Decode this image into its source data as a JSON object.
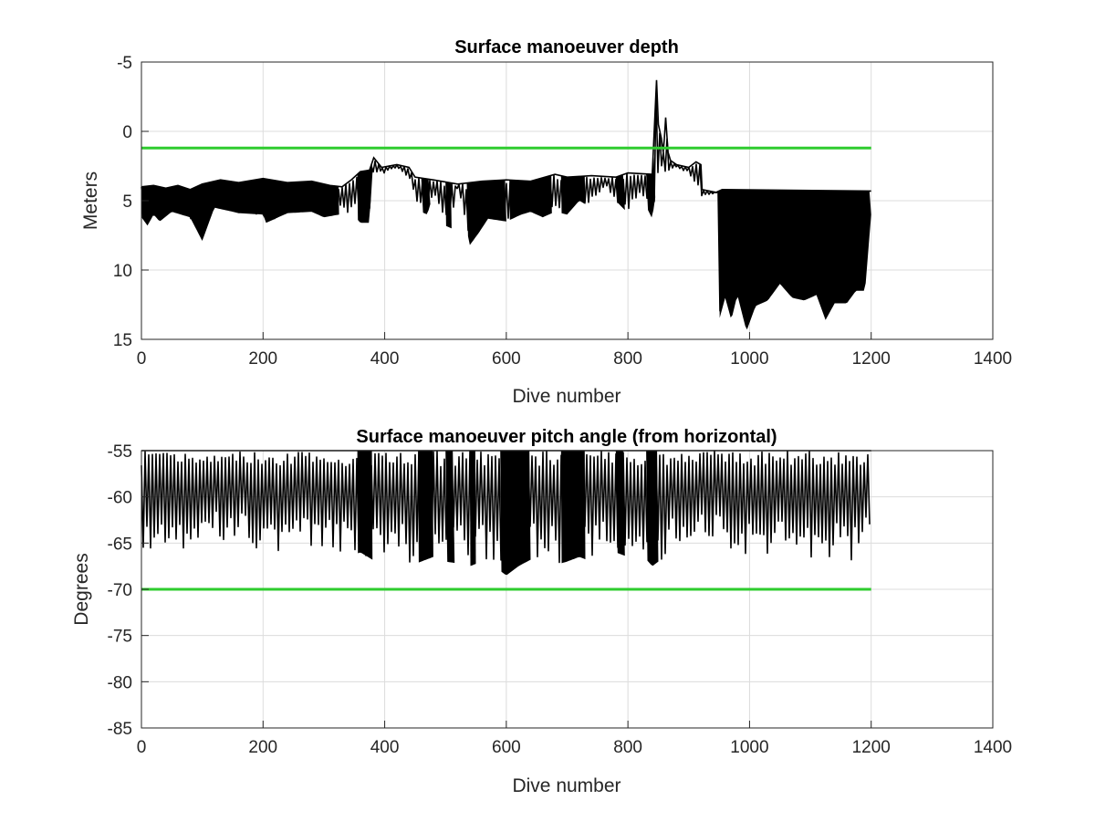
{
  "chart_data": [
    {
      "type": "line",
      "title": "Surface manoeuver depth",
      "xlabel": "Dive number",
      "ylabel": "Meters",
      "xlim": [
        0,
        1400
      ],
      "ylim": [
        -5,
        15
      ],
      "y_reversed": true,
      "grid": true,
      "xticks": [
        "0",
        "200",
        "400",
        "600",
        "800",
        "1000",
        "1200",
        "1400"
      ],
      "yticks": [
        "-5",
        "0",
        "5",
        "10",
        "15"
      ],
      "series": [
        {
          "style": "black spiky line",
          "color": "#000000",
          "upper": [
            [
              0,
              4.0
            ],
            [
              20,
              3.9
            ],
            [
              40,
              4.1
            ],
            [
              60,
              3.9
            ],
            [
              80,
              4.2
            ],
            [
              100,
              3.8
            ],
            [
              130,
              3.5
            ],
            [
              160,
              3.7
            ],
            [
              200,
              3.4
            ],
            [
              240,
              3.7
            ],
            [
              280,
              3.6
            ],
            [
              310,
              3.9
            ],
            [
              330,
              4.0
            ],
            [
              345,
              3.5
            ],
            [
              360,
              2.9
            ],
            [
              375,
              2.8
            ],
            [
              382,
              1.9
            ],
            [
              395,
              2.6
            ],
            [
              420,
              2.4
            ],
            [
              440,
              2.6
            ],
            [
              450,
              3.3
            ],
            [
              480,
              3.5
            ],
            [
              520,
              3.8
            ],
            [
              560,
              3.6
            ],
            [
              600,
              3.5
            ],
            [
              640,
              3.6
            ],
            [
              680,
              3.1
            ],
            [
              700,
              3.3
            ],
            [
              740,
              3.2
            ],
            [
              780,
              3.3
            ],
            [
              800,
              3.0
            ],
            [
              840,
              3.1
            ],
            [
              847,
              -3.7
            ],
            [
              850,
              -0.5
            ],
            [
              855,
              0.5
            ],
            [
              858,
              1.5
            ],
            [
              860,
              0.5
            ],
            [
              862,
              -1.0
            ],
            [
              866,
              1.5
            ],
            [
              870,
              2.1
            ],
            [
              880,
              2.4
            ],
            [
              900,
              2.6
            ],
            [
              912,
              2.2
            ],
            [
              920,
              2.4
            ],
            [
              922,
              4.2
            ],
            [
              945,
              4.4
            ],
            [
              955,
              4.2
            ],
            [
              1200,
              4.3
            ]
          ],
          "lower": [
            [
              0,
              6.2
            ],
            [
              10,
              6.8
            ],
            [
              20,
              6.0
            ],
            [
              30,
              6.5
            ],
            [
              50,
              5.8
            ],
            [
              80,
              6.2
            ],
            [
              100,
              7.9
            ],
            [
              120,
              5.5
            ],
            [
              160,
              5.9
            ],
            [
              200,
              6.0
            ],
            [
              205,
              6.6
            ],
            [
              240,
              5.9
            ],
            [
              280,
              5.8
            ],
            [
              300,
              6.2
            ],
            [
              325,
              6.0
            ],
            [
              345,
              5.8
            ],
            [
              360,
              6.6
            ],
            [
              375,
              6.6
            ],
            [
              380,
              3.0
            ],
            [
              400,
              3.0
            ],
            [
              420,
              2.6
            ],
            [
              440,
              3.6
            ],
            [
              460,
              5.8
            ],
            [
              470,
              6.0
            ],
            [
              480,
              4.5
            ],
            [
              500,
              6.8
            ],
            [
              510,
              7.0
            ],
            [
              520,
              4.0
            ],
            [
              540,
              8.2
            ],
            [
              555,
              7.3
            ],
            [
              570,
              6.3
            ],
            [
              600,
              6.5
            ],
            [
              625,
              6.0
            ],
            [
              640,
              5.8
            ],
            [
              660,
              6.2
            ],
            [
              680,
              5.8
            ],
            [
              700,
              6.0
            ],
            [
              720,
              5.0
            ],
            [
              740,
              5.5
            ],
            [
              760,
              4.0
            ],
            [
              780,
              5.0
            ],
            [
              800,
              5.9
            ],
            [
              820,
              4.5
            ],
            [
              840,
              6.3
            ],
            [
              850,
              3.2
            ],
            [
              860,
              3.4
            ],
            [
              870,
              2.8
            ],
            [
              880,
              2.6
            ],
            [
              900,
              3.0
            ],
            [
              920,
              4.8
            ],
            [
              948,
              4.4
            ],
            [
              950,
              13.6
            ],
            [
              960,
              12.0
            ],
            [
              970,
              13.6
            ],
            [
              980,
              11.8
            ],
            [
              995,
              14.4
            ],
            [
              1010,
              12.6
            ],
            [
              1030,
              12.2
            ],
            [
              1050,
              11.0
            ],
            [
              1070,
              12.0
            ],
            [
              1090,
              12.2
            ],
            [
              1110,
              11.8
            ],
            [
              1125,
              13.6
            ],
            [
              1140,
              12.4
            ],
            [
              1160,
              12.4
            ],
            [
              1175,
              11.5
            ],
            [
              1190,
              11.5
            ],
            [
              1200,
              6.0
            ]
          ],
          "fill_regions": [
            [
              0,
              325
            ],
            [
              355,
              380
            ],
            [
              460,
              475
            ],
            [
              500,
              510
            ],
            [
              535,
              600
            ],
            [
              605,
              675
            ],
            [
              690,
              730
            ],
            [
              780,
              795
            ],
            [
              830,
              845
            ],
            [
              948,
              1200
            ]
          ]
        },
        {
          "name_hint": "threshold",
          "color": "#2ecc2e",
          "points": [
            [
              0,
              1.2
            ],
            [
              1200,
              1.2
            ]
          ]
        }
      ]
    },
    {
      "type": "line",
      "title": "Surface manoeuver pitch angle (from horizontal)",
      "xlabel": "Dive number",
      "ylabel": "Degrees",
      "xlim": [
        0,
        1400
      ],
      "ylim": [
        -85,
        -55
      ],
      "grid": true,
      "xticks": [
        "0",
        "200",
        "400",
        "600",
        "800",
        "1000",
        "1200",
        "1400"
      ],
      "yticks": [
        "-55",
        "-60",
        "-65",
        "-70",
        "-75",
        "-80",
        "-85"
      ],
      "series": [
        {
          "style": "black spiky line",
          "color": "#000000",
          "upper": [
            [
              0,
              -55.0
            ],
            [
              1200,
              -55.0
            ]
          ],
          "lower": [
            [
              0,
              -66.2
            ],
            [
              40,
              -66.0
            ],
            [
              80,
              -65.6
            ],
            [
              100,
              -64.8
            ],
            [
              130,
              -64.5
            ],
            [
              150,
              -65.0
            ],
            [
              180,
              -65.5
            ],
            [
              210,
              -65.8
            ],
            [
              240,
              -66.0
            ],
            [
              260,
              -65.5
            ],
            [
              280,
              -66.2
            ],
            [
              300,
              -66.0
            ],
            [
              320,
              -66.2
            ],
            [
              340,
              -66.5
            ],
            [
              360,
              -66.0
            ],
            [
              380,
              -66.8
            ],
            [
              400,
              -66.4
            ],
            [
              420,
              -66.8
            ],
            [
              440,
              -67.5
            ],
            [
              460,
              -67.0
            ],
            [
              480,
              -66.5
            ],
            [
              500,
              -67.0
            ],
            [
              520,
              -67.2
            ],
            [
              540,
              -67.5
            ],
            [
              560,
              -67.0
            ],
            [
              580,
              -67.5
            ],
            [
              600,
              -68.5
            ],
            [
              620,
              -67.5
            ],
            [
              640,
              -66.8
            ],
            [
              660,
              -67.0
            ],
            [
              680,
              -67.4
            ],
            [
              700,
              -67.0
            ],
            [
              720,
              -66.5
            ],
            [
              740,
              -67.0
            ],
            [
              760,
              -66.5
            ],
            [
              780,
              -66.0
            ],
            [
              800,
              -66.5
            ],
            [
              820,
              -66.0
            ],
            [
              840,
              -67.5
            ],
            [
              860,
              -66.5
            ],
            [
              880,
              -66.0
            ],
            [
              900,
              -65.5
            ],
            [
              920,
              -65.0
            ],
            [
              940,
              -64.5
            ],
            [
              960,
              -65.5
            ],
            [
              980,
              -66.5
            ],
            [
              1000,
              -66.0
            ],
            [
              1020,
              -66.5
            ],
            [
              1040,
              -66.0
            ],
            [
              1060,
              -67.0
            ],
            [
              1080,
              -66.5
            ],
            [
              1100,
              -67.0
            ],
            [
              1120,
              -66.8
            ],
            [
              1140,
              -66.5
            ],
            [
              1160,
              -67.0
            ],
            [
              1180,
              -67.2
            ],
            [
              1200,
              -65.0
            ]
          ],
          "fill_regions": [
            [
              355,
              380
            ],
            [
              455,
              480
            ],
            [
              500,
              515
            ],
            [
              540,
              550
            ],
            [
              590,
              640
            ],
            [
              690,
              730
            ],
            [
              780,
              795
            ],
            [
              830,
              850
            ]
          ]
        },
        {
          "name_hint": "threshold",
          "color": "#2ecc2e",
          "points": [
            [
              0,
              -70
            ],
            [
              1200,
              -70
            ]
          ]
        }
      ]
    }
  ]
}
